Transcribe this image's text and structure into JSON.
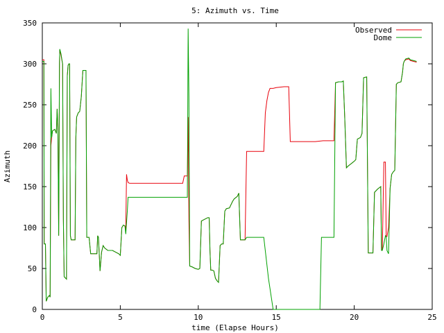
{
  "chart_data": {
    "type": "line",
    "title": "5: Azimuth vs. Time",
    "xlabel": "time (Elapse Hours)",
    "ylabel": "Azimuth",
    "xlim": [
      0,
      25
    ],
    "ylim": [
      0,
      350
    ],
    "xticks": [
      0,
      5,
      10,
      15,
      20,
      25
    ],
    "yticks": [
      0,
      50,
      100,
      150,
      200,
      250,
      300,
      350
    ],
    "grid": false,
    "legend": "top-right",
    "series": [
      {
        "name": "Observed",
        "color": "#e8000b",
        "points": [
          [
            0.0,
            305
          ],
          [
            0.1,
            305
          ],
          [
            0.12,
            80
          ],
          [
            0.2,
            80
          ],
          [
            0.25,
            10
          ],
          [
            0.35,
            15
          ],
          [
            0.45,
            17
          ],
          [
            0.5,
            15
          ],
          [
            0.55,
            200
          ],
          [
            0.6,
            210
          ],
          [
            0.65,
            218
          ],
          [
            0.8,
            220
          ],
          [
            0.9,
            215
          ],
          [
            0.95,
            245
          ],
          [
            1.0,
            217
          ],
          [
            1.05,
            90
          ],
          [
            1.1,
            300
          ],
          [
            1.12,
            317
          ],
          [
            1.2,
            310
          ],
          [
            1.3,
            300
          ],
          [
            1.35,
            110
          ],
          [
            1.4,
            40
          ],
          [
            1.5,
            38
          ],
          [
            1.55,
            37
          ],
          [
            1.6,
            285
          ],
          [
            1.65,
            298
          ],
          [
            1.7,
            300
          ],
          [
            1.75,
            300
          ],
          [
            1.8,
            90
          ],
          [
            1.85,
            85
          ],
          [
            2.0,
            85
          ],
          [
            2.1,
            85
          ],
          [
            2.15,
            210
          ],
          [
            2.2,
            235
          ],
          [
            2.3,
            240
          ],
          [
            2.4,
            242
          ],
          [
            2.5,
            260
          ],
          [
            2.6,
            292
          ],
          [
            2.8,
            292
          ],
          [
            2.85,
            88
          ],
          [
            3.0,
            88
          ],
          [
            3.1,
            68
          ],
          [
            3.3,
            68
          ],
          [
            3.5,
            68
          ],
          [
            3.55,
            90
          ],
          [
            3.6,
            88
          ],
          [
            3.7,
            47
          ],
          [
            3.8,
            70
          ],
          [
            3.9,
            78
          ],
          [
            4.0,
            75
          ],
          [
            4.2,
            72
          ],
          [
            4.5,
            72
          ],
          [
            4.7,
            70
          ],
          [
            4.9,
            68
          ],
          [
            5.0,
            66
          ],
          [
            5.1,
            100
          ],
          [
            5.2,
            103
          ],
          [
            5.3,
            102
          ],
          [
            5.35,
            95
          ],
          [
            5.4,
            165
          ],
          [
            5.45,
            158
          ],
          [
            5.5,
            155
          ],
          [
            5.6,
            154
          ],
          [
            6.5,
            154
          ],
          [
            7.5,
            154
          ],
          [
            8.5,
            154
          ],
          [
            9.0,
            154
          ],
          [
            9.1,
            163
          ],
          [
            9.3,
            163
          ],
          [
            9.35,
            235
          ],
          [
            9.4,
            110
          ],
          [
            9.45,
            53
          ],
          [
            9.6,
            52
          ],
          [
            9.8,
            50
          ],
          [
            10.0,
            49
          ],
          [
            10.1,
            50
          ],
          [
            10.2,
            108
          ],
          [
            10.4,
            110
          ],
          [
            10.6,
            112
          ],
          [
            10.7,
            112
          ],
          [
            10.75,
            72
          ],
          [
            10.8,
            48
          ],
          [
            10.9,
            48
          ],
          [
            11.0,
            47
          ],
          [
            11.1,
            38
          ],
          [
            11.2,
            35
          ],
          [
            11.3,
            33
          ],
          [
            11.4,
            78
          ],
          [
            11.5,
            80
          ],
          [
            11.6,
            80
          ],
          [
            11.7,
            120
          ],
          [
            11.8,
            123
          ],
          [
            12.0,
            124
          ],
          [
            12.1,
            128
          ],
          [
            12.2,
            132
          ],
          [
            12.3,
            135
          ],
          [
            12.5,
            138
          ],
          [
            12.6,
            142
          ],
          [
            12.7,
            85
          ],
          [
            12.8,
            85
          ],
          [
            13.0,
            85
          ],
          [
            13.1,
            193
          ],
          [
            13.3,
            193
          ],
          [
            13.5,
            193
          ],
          [
            14.0,
            193
          ],
          [
            14.2,
            193
          ],
          [
            14.3,
            240
          ],
          [
            14.4,
            255
          ],
          [
            14.5,
            265
          ],
          [
            14.6,
            270
          ],
          [
            14.8,
            270
          ],
          [
            15.0,
            271
          ],
          [
            15.5,
            272
          ],
          [
            15.8,
            272
          ],
          [
            15.9,
            205
          ],
          [
            16.0,
            205
          ],
          [
            16.5,
            205
          ],
          [
            17.5,
            205
          ],
          [
            18.0,
            206
          ],
          [
            18.5,
            206
          ],
          [
            18.7,
            206
          ],
          [
            18.8,
            277
          ],
          [
            19.0,
            278
          ],
          [
            19.2,
            278
          ],
          [
            19.3,
            279
          ],
          [
            19.4,
            230
          ],
          [
            19.5,
            173
          ],
          [
            19.6,
            175
          ],
          [
            19.8,
            178
          ],
          [
            20.0,
            181
          ],
          [
            20.1,
            183
          ],
          [
            20.2,
            208
          ],
          [
            20.4,
            210
          ],
          [
            20.5,
            215
          ],
          [
            20.6,
            283
          ],
          [
            20.8,
            284
          ],
          [
            20.9,
            69
          ],
          [
            21.0,
            69
          ],
          [
            21.2,
            69
          ],
          [
            21.3,
            143
          ],
          [
            21.5,
            147
          ],
          [
            21.7,
            150
          ],
          [
            21.75,
            72
          ],
          [
            21.8,
            72
          ],
          [
            21.9,
            180
          ],
          [
            22.0,
            180
          ],
          [
            22.05,
            89
          ],
          [
            22.1,
            89
          ],
          [
            22.2,
            100
          ],
          [
            22.3,
            148
          ],
          [
            22.4,
            165
          ],
          [
            22.5,
            168
          ],
          [
            22.6,
            170
          ],
          [
            22.7,
            275
          ],
          [
            22.8,
            277
          ],
          [
            23.0,
            278
          ],
          [
            23.1,
            290
          ],
          [
            23.15,
            300
          ],
          [
            23.2,
            303
          ],
          [
            23.3,
            305
          ],
          [
            23.5,
            306
          ],
          [
            23.6,
            304
          ],
          [
            23.8,
            303
          ],
          [
            24.0,
            302
          ]
        ]
      },
      {
        "name": "Dome",
        "color": "#00a000",
        "points": [
          [
            0.0,
            303
          ],
          [
            0.1,
            303
          ],
          [
            0.12,
            80
          ],
          [
            0.2,
            80
          ],
          [
            0.25,
            10
          ],
          [
            0.35,
            15
          ],
          [
            0.45,
            17
          ],
          [
            0.5,
            15
          ],
          [
            0.55,
            270
          ],
          [
            0.6,
            210
          ],
          [
            0.65,
            218
          ],
          [
            0.8,
            220
          ],
          [
            0.9,
            215
          ],
          [
            0.95,
            245
          ],
          [
            1.0,
            217
          ],
          [
            1.05,
            90
          ],
          [
            1.1,
            300
          ],
          [
            1.12,
            318
          ],
          [
            1.2,
            312
          ],
          [
            1.3,
            300
          ],
          [
            1.35,
            110
          ],
          [
            1.4,
            40
          ],
          [
            1.5,
            38
          ],
          [
            1.55,
            37
          ],
          [
            1.6,
            285
          ],
          [
            1.65,
            298
          ],
          [
            1.7,
            300
          ],
          [
            1.75,
            300
          ],
          [
            1.8,
            90
          ],
          [
            1.85,
            85
          ],
          [
            2.0,
            85
          ],
          [
            2.1,
            85
          ],
          [
            2.15,
            210
          ],
          [
            2.2,
            235
          ],
          [
            2.3,
            240
          ],
          [
            2.4,
            242
          ],
          [
            2.5,
            260
          ],
          [
            2.6,
            292
          ],
          [
            2.8,
            292
          ],
          [
            2.85,
            88
          ],
          [
            3.0,
            88
          ],
          [
            3.1,
            68
          ],
          [
            3.3,
            68
          ],
          [
            3.5,
            68
          ],
          [
            3.55,
            90
          ],
          [
            3.6,
            88
          ],
          [
            3.7,
            47
          ],
          [
            3.8,
            70
          ],
          [
            3.9,
            78
          ],
          [
            4.0,
            75
          ],
          [
            4.2,
            72
          ],
          [
            4.5,
            72
          ],
          [
            4.7,
            70
          ],
          [
            4.9,
            68
          ],
          [
            5.0,
            66
          ],
          [
            5.1,
            100
          ],
          [
            5.2,
            103
          ],
          [
            5.3,
            102
          ],
          [
            5.35,
            92
          ],
          [
            5.45,
            120
          ],
          [
            5.5,
            137
          ],
          [
            6.0,
            137
          ],
          [
            7.0,
            137
          ],
          [
            8.0,
            137
          ],
          [
            9.0,
            137
          ],
          [
            9.3,
            137
          ],
          [
            9.35,
            343
          ],
          [
            9.4,
            260
          ],
          [
            9.45,
            53
          ],
          [
            9.6,
            52
          ],
          [
            9.8,
            50
          ],
          [
            10.0,
            49
          ],
          [
            10.1,
            50
          ],
          [
            10.2,
            108
          ],
          [
            10.4,
            110
          ],
          [
            10.6,
            112
          ],
          [
            10.7,
            112
          ],
          [
            10.75,
            72
          ],
          [
            10.8,
            48
          ],
          [
            10.9,
            48
          ],
          [
            11.0,
            47
          ],
          [
            11.1,
            38
          ],
          [
            11.2,
            35
          ],
          [
            11.3,
            33
          ],
          [
            11.4,
            78
          ],
          [
            11.5,
            80
          ],
          [
            11.6,
            80
          ],
          [
            11.7,
            120
          ],
          [
            11.8,
            123
          ],
          [
            12.0,
            124
          ],
          [
            12.1,
            128
          ],
          [
            12.2,
            132
          ],
          [
            12.3,
            135
          ],
          [
            12.5,
            138
          ],
          [
            12.6,
            142
          ],
          [
            12.7,
            85
          ],
          [
            12.8,
            85
          ],
          [
            13.0,
            85
          ],
          [
            13.1,
            88
          ],
          [
            13.5,
            88
          ],
          [
            14.0,
            88
          ],
          [
            14.2,
            88
          ],
          [
            14.5,
            38
          ],
          [
            14.8,
            0
          ],
          [
            17.8,
            0
          ],
          [
            17.9,
            88
          ],
          [
            18.5,
            88
          ],
          [
            18.7,
            88
          ],
          [
            18.8,
            277
          ],
          [
            19.0,
            278
          ],
          [
            19.2,
            278
          ],
          [
            19.3,
            279
          ],
          [
            19.4,
            230
          ],
          [
            19.5,
            173
          ],
          [
            19.6,
            175
          ],
          [
            19.8,
            178
          ],
          [
            20.0,
            181
          ],
          [
            20.1,
            183
          ],
          [
            20.2,
            208
          ],
          [
            20.4,
            210
          ],
          [
            20.5,
            215
          ],
          [
            20.6,
            283
          ],
          [
            20.8,
            284
          ],
          [
            20.9,
            69
          ],
          [
            21.0,
            69
          ],
          [
            21.2,
            69
          ],
          [
            21.3,
            143
          ],
          [
            21.5,
            147
          ],
          [
            21.7,
            150
          ],
          [
            21.75,
            72
          ],
          [
            21.8,
            72
          ],
          [
            21.9,
            80
          ],
          [
            22.0,
            90
          ],
          [
            22.05,
            89
          ],
          [
            22.1,
            72
          ],
          [
            22.2,
            68
          ],
          [
            22.3,
            148
          ],
          [
            22.4,
            165
          ],
          [
            22.5,
            168
          ],
          [
            22.6,
            170
          ],
          [
            22.7,
            275
          ],
          [
            22.8,
            277
          ],
          [
            23.0,
            278
          ],
          [
            23.1,
            290
          ],
          [
            23.15,
            300
          ],
          [
            23.2,
            303
          ],
          [
            23.3,
            306
          ],
          [
            23.5,
            307
          ],
          [
            23.6,
            305
          ],
          [
            23.8,
            304
          ],
          [
            24.0,
            303
          ]
        ]
      }
    ]
  }
}
